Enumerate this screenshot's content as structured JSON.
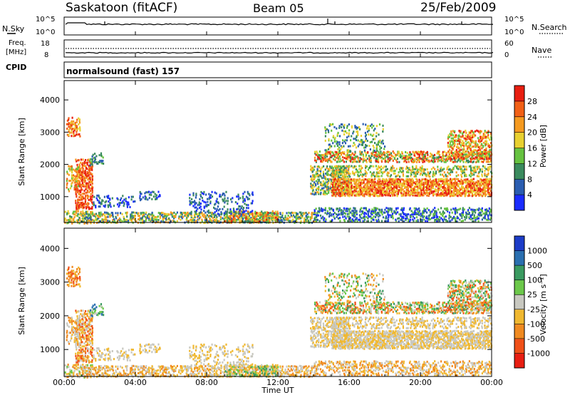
{
  "header": {
    "station": "Saskatoon (fitACF)",
    "beam": "Beam 05",
    "date": "25/Feb/2009"
  },
  "top_panels": {
    "nsky_label": "N.Sky",
    "nsky_ticks": [
      "10^5",
      "10^0"
    ],
    "nsearch_label": "N.Search",
    "nsearch_ticks": [
      "10^5",
      "10^0"
    ],
    "freq_label_1": "Freq.",
    "freq_label_2": "[MHz]",
    "freq_ticks": [
      "18",
      "8"
    ],
    "nave_label": "Nave",
    "nave_ticks": [
      "60",
      "0"
    ],
    "cpid_label": "CPID",
    "cpid_text": "normalsound (fast) 157"
  },
  "chart_data": [
    {
      "type": "heatmap",
      "name": "power-panel",
      "ylabel": "Slant Range [km]",
      "yticks": [
        "1000",
        "2000",
        "3000",
        "4000"
      ],
      "ylim": [
        200,
        4600
      ],
      "colorbar_label": "Power [dB]",
      "colorbar_ticks": [
        "4",
        "8",
        "12",
        "16",
        "20",
        "24",
        "28"
      ],
      "colorbar_colors": [
        "#1a2cff",
        "#2a5db0",
        "#3a8a5e",
        "#66c240",
        "#e8d030",
        "#f59a20",
        "#f26016",
        "#e81e10"
      ]
    },
    {
      "type": "heatmap",
      "name": "velocity-panel",
      "ylabel": "Slant Range [km]",
      "yticks": [
        "1000",
        "2000",
        "3000",
        "4000"
      ],
      "ylim": [
        200,
        4600
      ],
      "xlabel": "Time UT",
      "xticks": [
        "00:00",
        "04:00",
        "08:00",
        "12:00",
        "16:00",
        "20:00",
        "00:00"
      ],
      "colorbar_label": "Velocity [m s⁻¹]",
      "colorbar_ticks": [
        "1000",
        "500",
        "100",
        "25",
        "-25",
        "-100",
        "-500",
        "-1000"
      ],
      "colorbar_colors": [
        "#1c3cc8",
        "#2a6fb0",
        "#3a9a60",
        "#6cc84a",
        "#c8c8c0",
        "#f0b830",
        "#f08a20",
        "#f05018",
        "#e81e12"
      ]
    }
  ]
}
